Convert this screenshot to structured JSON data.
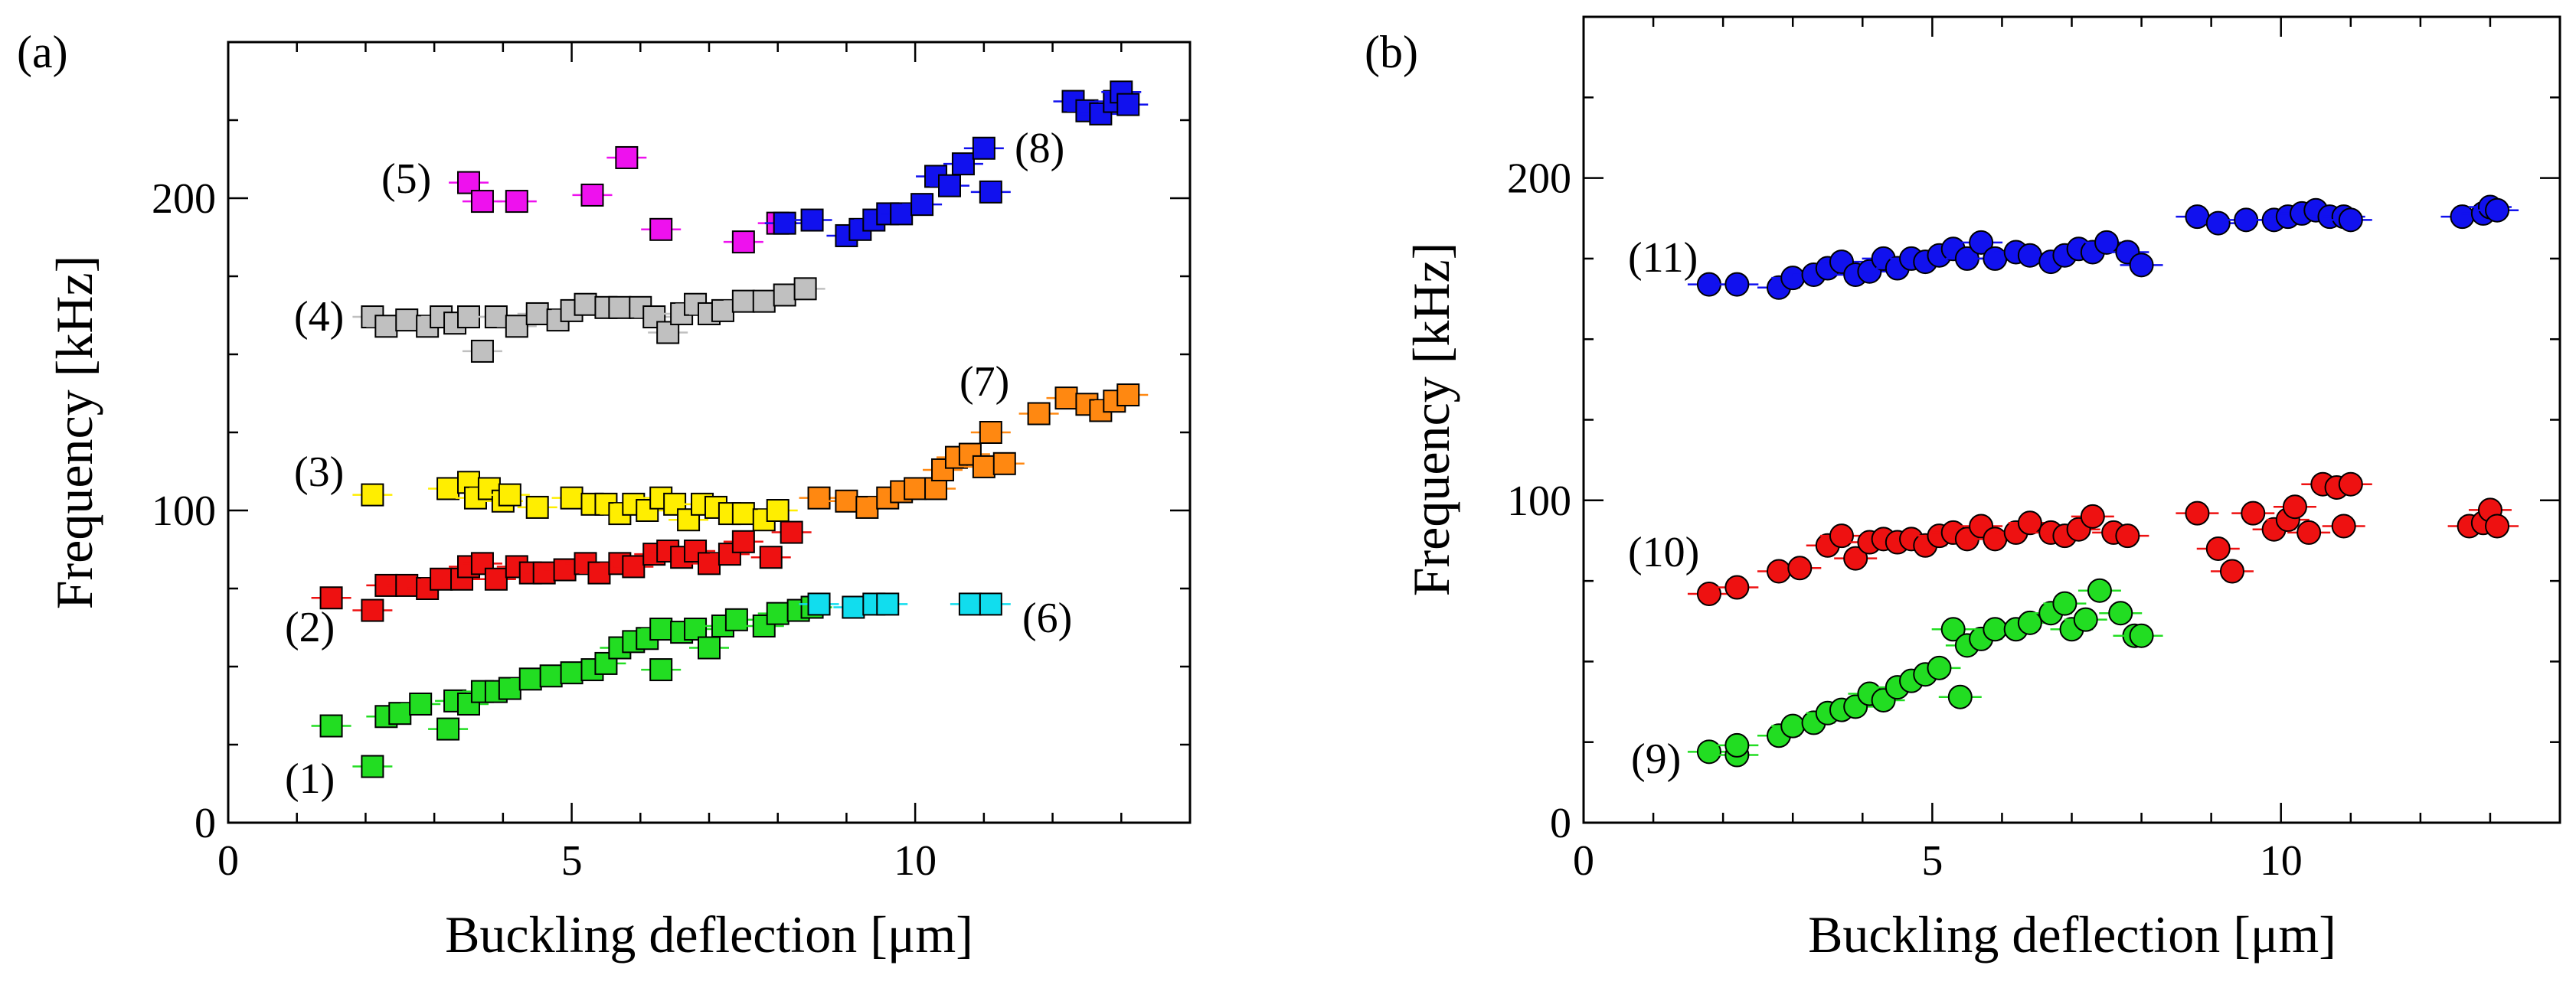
{
  "chart_data": [
    {
      "type": "scatter",
      "panel_label": "(a)",
      "xlabel": "Buckling deflection [μm]",
      "ylabel": "Frequency [kHz]",
      "xlim": [
        0,
        14
      ],
      "ylim": [
        0,
        250
      ],
      "xticks": [
        "0",
        "5",
        "10"
      ],
      "yticks": [
        "0",
        "100",
        "200"
      ],
      "marker": "square",
      "grid": false,
      "series": [
        {
          "name": "(1)",
          "color": "#22dd22",
          "x": [
            1.5,
            2.1,
            2.3,
            2.5,
            2.8,
            3.2,
            3.3,
            3.5,
            3.7,
            3.9,
            4.1,
            4.4,
            4.7,
            5.0,
            5.3,
            5.5,
            5.7,
            5.9,
            6.1,
            6.3,
            6.3,
            6.6,
            6.8,
            7.0,
            7.2,
            7.4,
            7.8,
            8.0,
            8.3,
            8.5
          ],
          "y": [
            31,
            18,
            34,
            35,
            38,
            30,
            39,
            38,
            42,
            42,
            43,
            46,
            47,
            48,
            49,
            51,
            56,
            58,
            59,
            62,
            49,
            61,
            62,
            56,
            63,
            65,
            63,
            67,
            68,
            69
          ]
        },
        {
          "name": "(2)",
          "color": "#ee1111",
          "x": [
            1.5,
            2.1,
            2.3,
            2.6,
            2.9,
            3.1,
            3.4,
            3.5,
            3.7,
            3.9,
            4.2,
            4.4,
            4.6,
            4.9,
            5.2,
            5.4,
            5.7,
            5.9,
            6.2,
            6.4,
            6.6,
            6.8,
            7.0,
            7.3,
            7.5,
            7.9,
            8.2
          ],
          "y": [
            72,
            68,
            76,
            76,
            75,
            78,
            78,
            82,
            83,
            78,
            82,
            80,
            80,
            81,
            83,
            80,
            83,
            82,
            86,
            87,
            85,
            87,
            83,
            86,
            90,
            85,
            93
          ]
        },
        {
          "name": "(3)",
          "color": "#ffee00",
          "x": [
            2.1,
            3.2,
            3.5,
            3.6,
            3.8,
            4.0,
            4.1,
            4.5,
            5.0,
            5.3,
            5.5,
            5.7,
            5.9,
            6.1,
            6.3,
            6.5,
            6.7,
            6.9,
            7.1,
            7.3,
            7.5,
            7.8,
            8.0
          ],
          "y": [
            105,
            107,
            109,
            104,
            107,
            103,
            105,
            101,
            104,
            102,
            102,
            99,
            102,
            100,
            104,
            102,
            97,
            102,
            101,
            99,
            99,
            97,
            100
          ]
        },
        {
          "name": "(4)",
          "color": "#c0c0c0",
          "x": [
            2.1,
            2.3,
            2.6,
            2.9,
            3.1,
            3.3,
            3.5,
            3.7,
            3.9,
            4.2,
            4.5,
            4.8,
            5.0,
            5.2,
            5.5,
            5.7,
            6.0,
            6.2,
            6.4,
            6.6,
            6.8,
            7.0,
            7.2,
            7.5,
            7.8,
            8.1,
            8.4
          ],
          "y": [
            162,
            159,
            161,
            159,
            162,
            160,
            162,
            151,
            162,
            159,
            163,
            161,
            164,
            166,
            165,
            165,
            165,
            162,
            157,
            163,
            166,
            163,
            164,
            167,
            167,
            169,
            171
          ]
        },
        {
          "name": "(5)",
          "color": "#ee11ee",
          "x": [
            3.5,
            3.7,
            4.2,
            5.3,
            5.8,
            6.3,
            7.5,
            8.0
          ],
          "y": [
            205,
            199,
            199,
            201,
            213,
            190,
            186,
            192
          ]
        },
        {
          "name": "(6)",
          "color": "#11ddee",
          "x": [
            8.6,
            9.1,
            9.4,
            9.6,
            10.8,
            11.1
          ],
          "y": [
            70,
            69,
            70,
            70,
            70,
            70
          ]
        },
        {
          "name": "(7)",
          "color": "#ff8811",
          "x": [
            8.6,
            9.0,
            9.3,
            9.6,
            9.8,
            10.0,
            10.3,
            10.4,
            10.6,
            10.8,
            11.0,
            11.1,
            11.3,
            11.8,
            12.2,
            12.5,
            12.7,
            12.9,
            13.1
          ],
          "y": [
            104,
            103,
            101,
            104,
            106,
            107,
            107,
            113,
            117,
            118,
            114,
            125,
            115,
            131,
            136,
            134,
            132,
            135,
            137
          ]
        },
        {
          "name": "(8)",
          "color": "#1111ee",
          "x": [
            8.1,
            8.5,
            9.0,
            9.2,
            9.4,
            9.6,
            9.8,
            10.1,
            10.3,
            10.5,
            10.7,
            11.0,
            11.1,
            12.3,
            12.5,
            12.7,
            12.9,
            13.0,
            13.1
          ],
          "y": [
            192,
            193,
            188,
            190,
            193,
            195,
            195,
            198,
            207,
            204,
            211,
            216,
            202,
            231,
            228,
            227,
            231,
            234,
            230
          ]
        }
      ],
      "annotations": [
        "(1)",
        "(2)",
        "(3)",
        "(4)",
        "(5)",
        "(6)",
        "(7)",
        "(8)"
      ]
    },
    {
      "type": "scatter",
      "panel_label": "(b)",
      "xlabel": "Buckling deflection [μm]",
      "ylabel": "Frequency [kHz]",
      "xlim": [
        0,
        14
      ],
      "ylim": [
        0,
        250
      ],
      "xticks": [
        "0",
        "5",
        "10"
      ],
      "yticks": [
        "0",
        "100",
        "200"
      ],
      "marker": "circle",
      "grid": false,
      "series": [
        {
          "name": "(9)",
          "color": "#22dd22",
          "x": [
            1.8,
            2.2,
            2.2,
            2.8,
            3.0,
            3.3,
            3.5,
            3.7,
            3.9,
            4.1,
            4.3,
            4.5,
            4.7,
            4.9,
            5.1,
            5.3,
            5.4,
            5.5,
            5.7,
            5.9,
            6.2,
            6.4,
            6.7,
            6.9,
            7.0,
            7.2,
            7.4,
            7.7,
            7.9,
            8.0
          ],
          "y": [
            22,
            21,
            24,
            27,
            30,
            31,
            34,
            35,
            36,
            40,
            38,
            42,
            44,
            46,
            48,
            60,
            39,
            55,
            57,
            60,
            60,
            62,
            65,
            68,
            60,
            63,
            72,
            65,
            58,
            58
          ]
        },
        {
          "name": "(10)",
          "color": "#ee1111",
          "x": [
            1.8,
            2.2,
            2.8,
            3.1,
            3.5,
            3.7,
            3.9,
            4.1,
            4.3,
            4.5,
            4.7,
            4.9,
            5.1,
            5.3,
            5.5,
            5.7,
            5.9,
            6.2,
            6.4,
            6.7,
            6.9,
            7.1,
            7.3,
            7.6,
            7.8,
            8.8,
            9.1,
            9.3,
            9.6,
            9.9,
            10.1,
            10.2,
            10.4,
            10.6,
            10.8,
            10.9,
            11.0,
            12.7,
            12.9,
            13.0,
            13.1
          ],
          "y": [
            71,
            73,
            78,
            79,
            86,
            89,
            82,
            87,
            88,
            87,
            88,
            86,
            89,
            90,
            88,
            92,
            88,
            90,
            93,
            90,
            89,
            91,
            95,
            90,
            89,
            96,
            85,
            78,
            96,
            91,
            94,
            98,
            90,
            105,
            104,
            92,
            105,
            92,
            93,
            97,
            92
          ]
        },
        {
          "name": "(11)",
          "color": "#1111ee",
          "x": [
            1.8,
            2.2,
            2.8,
            3.0,
            3.3,
            3.5,
            3.7,
            3.9,
            4.1,
            4.3,
            4.5,
            4.7,
            4.9,
            5.1,
            5.3,
            5.5,
            5.7,
            5.9,
            6.2,
            6.4,
            6.7,
            6.9,
            7.1,
            7.3,
            7.5,
            7.8,
            8.0,
            8.8,
            9.1,
            9.5,
            9.9,
            10.1,
            10.3,
            10.5,
            10.7,
            10.9,
            11.0,
            12.6,
            12.9,
            13.0,
            13.1
          ],
          "y": [
            167,
            167,
            166,
            169,
            170,
            172,
            174,
            170,
            171,
            175,
            172,
            175,
            174,
            176,
            178,
            175,
            180,
            175,
            177,
            176,
            174,
            176,
            178,
            177,
            180,
            177,
            173,
            188,
            186,
            187,
            187,
            188,
            189,
            190,
            188,
            188,
            187,
            188,
            189,
            191,
            190
          ]
        }
      ],
      "annotations": [
        "(9)",
        "(10)",
        "(11)"
      ]
    }
  ]
}
